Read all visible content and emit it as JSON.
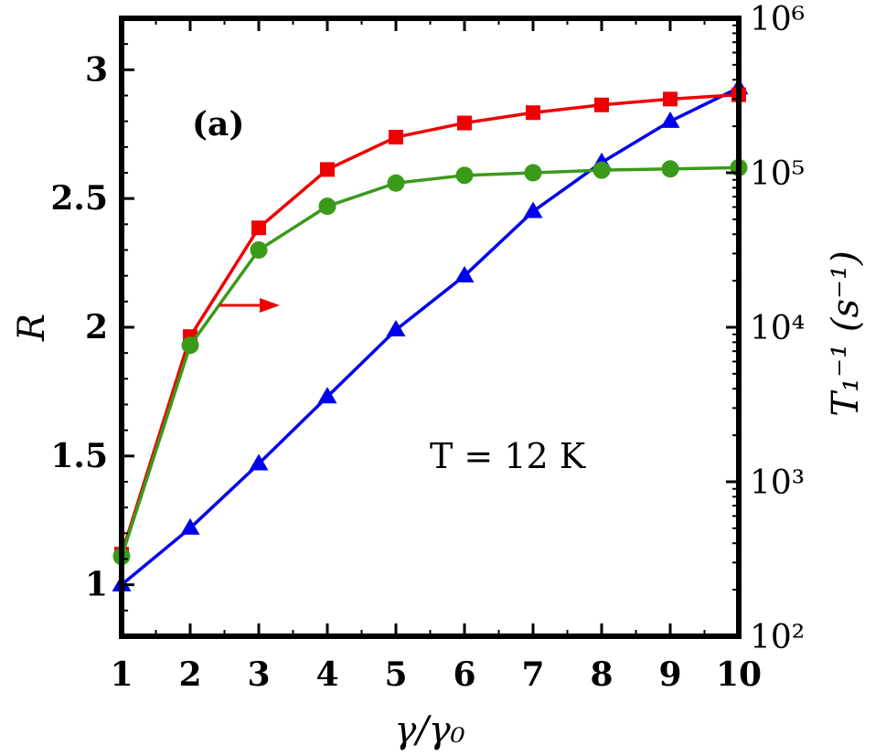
{
  "chart_data": {
    "type": "line",
    "panel_label": "(a)",
    "annotation": "T = 12 K",
    "xlabel": "γ/γ₀",
    "ylabel_left": "R",
    "ylabel_right": "T₁⁻¹ (s⁻¹)",
    "xlim": [
      1,
      10
    ],
    "ylim_left": [
      0.8,
      3.2
    ],
    "ylim_right": [
      100,
      1000000
    ],
    "right_scale": "log",
    "x_ticks": [
      "1",
      "2",
      "3",
      "4",
      "5",
      "6",
      "7",
      "8",
      "9",
      "10"
    ],
    "y_left_ticks": [
      "1",
      "1.5",
      "2",
      "2.5",
      "3"
    ],
    "y_right_ticks": [
      "10²",
      "10³",
      "10⁴",
      "10⁵",
      "10⁶"
    ],
    "grid": false,
    "x": [
      1,
      2,
      3,
      4,
      5,
      6,
      7,
      8,
      9,
      10
    ],
    "series": [
      {
        "axis": "left",
        "marker": "triangle",
        "color": "#0000ee",
        "values": [
          1.0,
          1.22,
          1.47,
          1.73,
          1.99,
          2.2,
          2.45,
          2.64,
          2.8,
          2.93
        ]
      },
      {
        "axis": "right",
        "marker": "square",
        "color": "#ee0000",
        "values": [
          340,
          8700,
          44000,
          105000,
          170000,
          210000,
          245000,
          275000,
          300000,
          320000
        ]
      },
      {
        "axis": "left",
        "marker": "circle",
        "color": "#3a9a1a",
        "values": [
          1.11,
          1.93,
          2.3,
          2.47,
          2.56,
          2.59,
          2.6,
          2.61,
          2.615,
          2.62
        ]
      }
    ],
    "arrow_color": "#ee0000"
  }
}
